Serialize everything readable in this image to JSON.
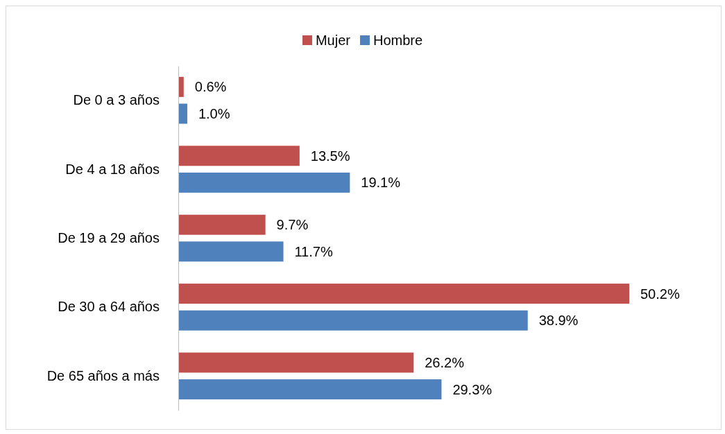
{
  "chart_data": {
    "type": "bar",
    "orientation": "horizontal",
    "legend": "top",
    "categories": [
      "De 0 a 3 años",
      "De 4 a 18 años",
      "De 19 a 29 años",
      "De 30 a 64 años",
      "De 65 años a más"
    ],
    "series": [
      {
        "name": "Mujer",
        "color": "#c0504d",
        "values": [
          0.6,
          13.5,
          9.7,
          50.2,
          26.2
        ],
        "value_labels": [
          "0.6%",
          "13.5%",
          "9.7%",
          "50.2%",
          "26.2%"
        ]
      },
      {
        "name": "Hombre",
        "color": "#4f81bd",
        "values": [
          1.0,
          19.1,
          11.7,
          38.9,
          29.3
        ],
        "value_labels": [
          "1.0%",
          "19.1%",
          "11.7%",
          "38.9%",
          "29.3%"
        ]
      }
    ]
  }
}
